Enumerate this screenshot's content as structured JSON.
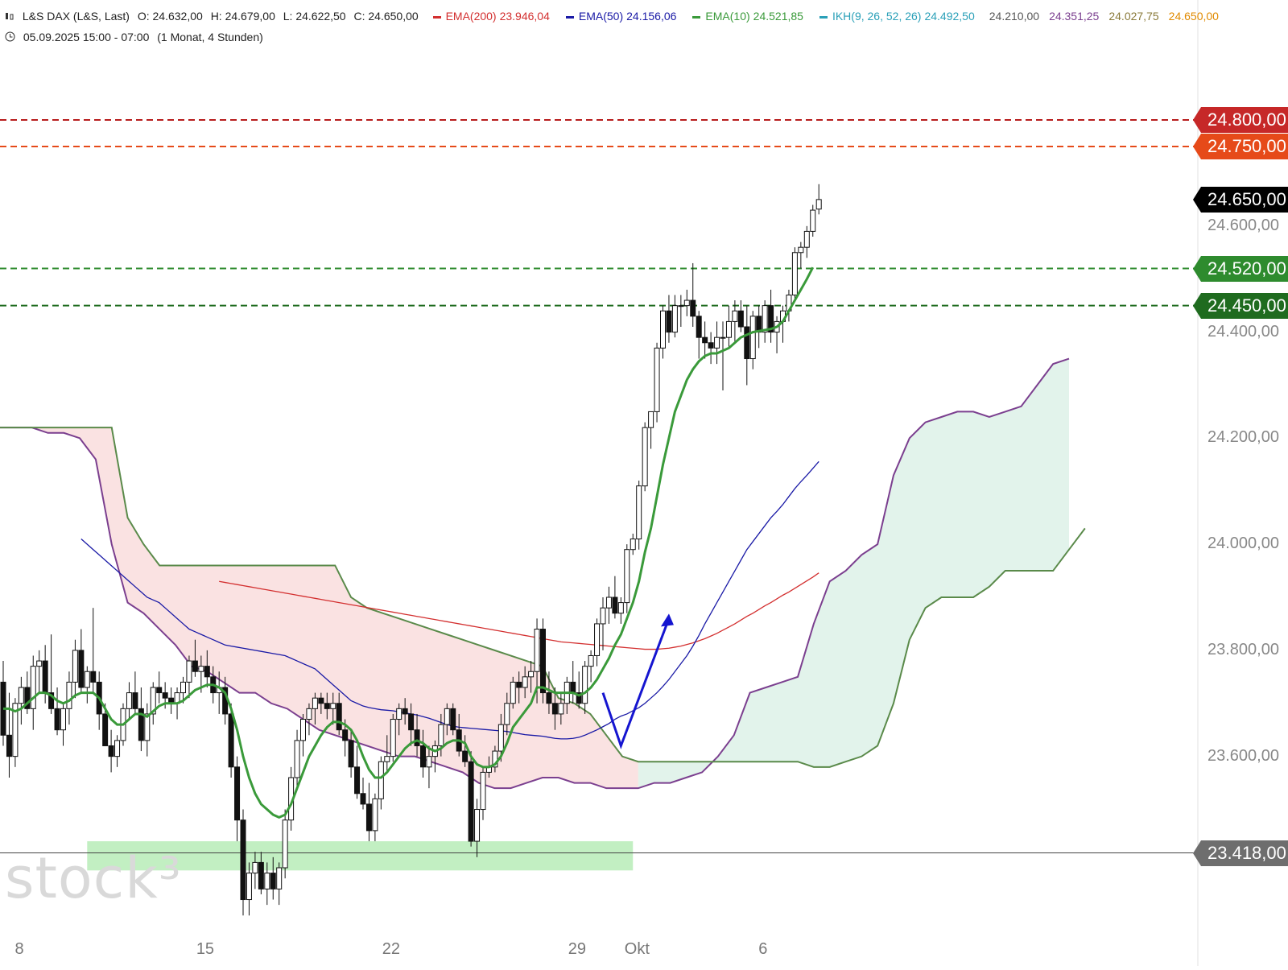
{
  "header": {
    "symbol": "L&S DAX (L&S, Last)",
    "ohlc": [
      "O: 24.632,00",
      "H: 24.679,00",
      "L: 24.622,50",
      "C: 24.650,00"
    ],
    "indicators": [
      {
        "label": "EMA(200)",
        "value": "23.946,04",
        "color": "#d32f2f"
      },
      {
        "label": "EMA(50)",
        "value": "24.156,06",
        "color": "#1a1aa6"
      },
      {
        "label": "EMA(10)",
        "value": "24.521,85",
        "color": "#3a9a3a"
      },
      {
        "label": "IKH(9, 26, 52, 26)",
        "value": "24.492,50",
        "color": "#2aa0b8"
      }
    ],
    "ikh_extra": [
      {
        "value": "24.210,00",
        "color": "#555555"
      },
      {
        "value": "24.351,25",
        "color": "#7b3f8f"
      },
      {
        "value": "24.027,75",
        "color": "#8a7a3a"
      },
      {
        "value": "24.650,00",
        "color": "#e08a00"
      }
    ],
    "period": "05.09.2025 15:00 - 07:00",
    "timeframe": "(1 Monat, 4 Stunden)"
  },
  "watermark": "stock³",
  "chart_data": {
    "type": "candlestick",
    "y_axis_labels": [
      "24.600,00",
      "24.400,00",
      "24.200,00",
      "24.000,00",
      "23.800,00",
      "23.600,00"
    ],
    "y_axis_values": [
      24600,
      24400,
      24200,
      24000,
      23800,
      23600
    ],
    "ylim": [
      23220,
      24920
    ],
    "x_axis_labels": [
      "8",
      "15",
      "22",
      "29",
      "Okt",
      "6"
    ],
    "x_axis_positions": [
      0,
      31,
      62,
      93,
      103,
      124
    ],
    "levels": [
      {
        "label": "24.800,00",
        "value": 24800,
        "color": "#b71c1c",
        "style": "dashed",
        "tag_color": "#c62828"
      },
      {
        "label": "24.750,00",
        "value": 24750,
        "color": "#e64a19",
        "style": "dashed",
        "tag_color": "#e64a19"
      },
      {
        "label": "24.520,00",
        "value": 24520,
        "color": "#2e8b2e",
        "style": "dashed",
        "tag_color": "#2e8b2e"
      },
      {
        "label": "24.450,00",
        "value": 24450,
        "color": "#1f6b1f",
        "style": "dashed",
        "tag_color": "#1f6b1f"
      },
      {
        "label": "23.418,00",
        "value": 23418,
        "color": "#444444",
        "style": "solid",
        "tag_color": "#6e6e6e"
      }
    ],
    "last_price": {
      "label": "24.650,00",
      "value": 24650
    },
    "support_zone": {
      "y_from": 23385,
      "y_to": 23440,
      "x_from": 14,
      "x_to": 105
    },
    "candles": [
      [
        23740,
        23780,
        23620,
        23640
      ],
      [
        23640,
        23720,
        23560,
        23600
      ],
      [
        23600,
        23710,
        23580,
        23700
      ],
      [
        23700,
        23750,
        23660,
        23730
      ],
      [
        23730,
        23760,
        23680,
        23690
      ],
      [
        23690,
        23790,
        23650,
        23770
      ],
      [
        23770,
        23800,
        23720,
        23780
      ],
      [
        23780,
        23810,
        23700,
        23720
      ],
      [
        23720,
        23830,
        23680,
        23690
      ],
      [
        23690,
        23730,
        23640,
        23650
      ],
      [
        23650,
        23700,
        23620,
        23690
      ],
      [
        23690,
        23760,
        23660,
        23740
      ],
      [
        23740,
        23820,
        23710,
        23800
      ],
      [
        23800,
        23840,
        23720,
        23730
      ],
      [
        23730,
        23770,
        23700,
        23760
      ],
      [
        23760,
        23880,
        23720,
        23740
      ],
      [
        23740,
        23760,
        23650,
        23680
      ],
      [
        23680,
        23700,
        23620,
        23620
      ],
      [
        23620,
        23650,
        23570,
        23600
      ],
      [
        23600,
        23640,
        23580,
        23630
      ],
      [
        23630,
        23700,
        23620,
        23690
      ],
      [
        23690,
        23740,
        23670,
        23720
      ],
      [
        23720,
        23760,
        23680,
        23690
      ],
      [
        23690,
        23730,
        23610,
        23630
      ],
      [
        23630,
        23700,
        23600,
        23680
      ],
      [
        23680,
        23740,
        23660,
        23730
      ],
      [
        23730,
        23760,
        23700,
        23720
      ],
      [
        23720,
        23740,
        23690,
        23710
      ],
      [
        23710,
        23730,
        23680,
        23700
      ],
      [
        23700,
        23730,
        23670,
        23720
      ],
      [
        23720,
        23750,
        23700,
        23740
      ],
      [
        23740,
        23790,
        23710,
        23780
      ],
      [
        23780,
        23820,
        23750,
        23760
      ],
      [
        23760,
        23790,
        23720,
        23770
      ],
      [
        23770,
        23800,
        23730,
        23750
      ],
      [
        23750,
        23770,
        23700,
        23720
      ],
      [
        23720,
        23760,
        23680,
        23730
      ],
      [
        23730,
        23750,
        23660,
        23680
      ],
      [
        23680,
        23700,
        23560,
        23580
      ],
      [
        23580,
        23600,
        23440,
        23480
      ],
      [
        23480,
        23500,
        23300,
        23330
      ],
      [
        23330,
        23400,
        23300,
        23380
      ],
      [
        23380,
        23420,
        23350,
        23400
      ],
      [
        23400,
        23420,
        23340,
        23350
      ],
      [
        23350,
        23400,
        23320,
        23380
      ],
      [
        23380,
        23410,
        23330,
        23350
      ],
      [
        23350,
        23400,
        23320,
        23390
      ],
      [
        23390,
        23500,
        23370,
        23480
      ],
      [
        23480,
        23580,
        23460,
        23560
      ],
      [
        23560,
        23650,
        23540,
        23630
      ],
      [
        23630,
        23680,
        23600,
        23670
      ],
      [
        23670,
        23700,
        23640,
        23690
      ],
      [
        23690,
        23720,
        23660,
        23710
      ],
      [
        23710,
        23720,
        23680,
        23700
      ],
      [
        23700,
        23720,
        23670,
        23690
      ],
      [
        23690,
        23720,
        23660,
        23700
      ],
      [
        23700,
        23720,
        23640,
        23650
      ],
      [
        23650,
        23670,
        23600,
        23630
      ],
      [
        23630,
        23650,
        23560,
        23580
      ],
      [
        23580,
        23620,
        23520,
        23530
      ],
      [
        23530,
        23560,
        23500,
        23510
      ],
      [
        23510,
        23550,
        23440,
        23460
      ],
      [
        23460,
        23530,
        23440,
        23520
      ],
      [
        23520,
        23600,
        23500,
        23590
      ],
      [
        23590,
        23640,
        23570,
        23600
      ],
      [
        23600,
        23680,
        23590,
        23670
      ],
      [
        23670,
        23700,
        23640,
        23690
      ],
      [
        23690,
        23710,
        23660,
        23680
      ],
      [
        23680,
        23700,
        23620,
        23650
      ],
      [
        23650,
        23680,
        23600,
        23620
      ],
      [
        23620,
        23650,
        23560,
        23580
      ],
      [
        23580,
        23620,
        23540,
        23600
      ],
      [
        23600,
        23630,
        23570,
        23620
      ],
      [
        23620,
        23680,
        23600,
        23660
      ],
      [
        23660,
        23700,
        23640,
        23690
      ],
      [
        23690,
        23700,
        23640,
        23650
      ],
      [
        23650,
        23680,
        23600,
        23610
      ],
      [
        23610,
        23640,
        23580,
        23590
      ],
      [
        23590,
        23610,
        23430,
        23440
      ],
      [
        23440,
        23520,
        23410,
        23500
      ],
      [
        23500,
        23580,
        23480,
        23570
      ],
      [
        23570,
        23600,
        23560,
        23580
      ],
      [
        23580,
        23620,
        23570,
        23610
      ],
      [
        23610,
        23680,
        23590,
        23660
      ],
      [
        23660,
        23720,
        23640,
        23700
      ],
      [
        23700,
        23750,
        23690,
        23740
      ],
      [
        23740,
        23760,
        23700,
        23730
      ],
      [
        23730,
        23770,
        23710,
        23750
      ],
      [
        23750,
        23780,
        23720,
        23760
      ],
      [
        23760,
        23860,
        23700,
        23840
      ],
      [
        23840,
        23860,
        23700,
        23720
      ],
      [
        23720,
        23760,
        23680,
        23700
      ],
      [
        23700,
        23730,
        23650,
        23680
      ],
      [
        23680,
        23720,
        23660,
        23700
      ],
      [
        23700,
        23750,
        23680,
        23740
      ],
      [
        23740,
        23780,
        23700,
        23720
      ],
      [
        23720,
        23760,
        23690,
        23700
      ],
      [
        23700,
        23780,
        23680,
        23770
      ],
      [
        23770,
        23800,
        23740,
        23790
      ],
      [
        23790,
        23860,
        23770,
        23850
      ],
      [
        23850,
        23900,
        23800,
        23880
      ],
      [
        23880,
        23920,
        23850,
        23900
      ],
      [
        23900,
        23940,
        23860,
        23870
      ],
      [
        23870,
        23900,
        23850,
        23890
      ],
      [
        23890,
        24000,
        23870,
        23990
      ],
      [
        23990,
        24020,
        23980,
        24010
      ],
      [
        24010,
        24120,
        23990,
        24110
      ],
      [
        24110,
        24230,
        24100,
        24220
      ],
      [
        24220,
        24250,
        24180,
        24250
      ],
      [
        24250,
        24380,
        24230,
        24370
      ],
      [
        24370,
        24450,
        24350,
        24440
      ],
      [
        24440,
        24470,
        24380,
        24400
      ],
      [
        24400,
        24470,
        24390,
        24450
      ],
      [
        24450,
        24470,
        24410,
        24450
      ],
      [
        24450,
        24480,
        24430,
        24460
      ],
      [
        24460,
        24530,
        24410,
        24430
      ],
      [
        24430,
        24440,
        24350,
        24390
      ],
      [
        24390,
        24420,
        24350,
        24380
      ],
      [
        24380,
        24400,
        24340,
        24370
      ],
      [
        24370,
        24420,
        24340,
        24390
      ],
      [
        24390,
        24420,
        24290,
        24390
      ],
      [
        24390,
        24450,
        24370,
        24420
      ],
      [
        24420,
        24460,
        24380,
        24440
      ],
      [
        24440,
        24460,
        24400,
        24410
      ],
      [
        24410,
        24450,
        24300,
        24350
      ],
      [
        24350,
        24440,
        24330,
        24430
      ],
      [
        24430,
        24450,
        24370,
        24400
      ],
      [
        24400,
        24460,
        24380,
        24450
      ],
      [
        24450,
        24480,
        24380,
        24400
      ],
      [
        24400,
        24430,
        24360,
        24420
      ],
      [
        24420,
        24450,
        24380,
        24440
      ],
      [
        24440,
        24480,
        24420,
        24470
      ],
      [
        24470,
        24560,
        24460,
        24550
      ],
      [
        24550,
        24570,
        24520,
        24560
      ],
      [
        24560,
        24600,
        24540,
        24590
      ],
      [
        24590,
        24640,
        24580,
        24630
      ],
      [
        24632,
        24679,
        24622,
        24650
      ]
    ],
    "ema10": [
      23690,
      23690,
      23685,
      23690,
      23700,
      23710,
      23720,
      23720,
      23715,
      23705,
      23700,
      23705,
      23715,
      23720,
      23720,
      23720,
      23710,
      23690,
      23670,
      23660,
      23660,
      23670,
      23680,
      23680,
      23675,
      23685,
      23695,
      23700,
      23700,
      23700,
      23705,
      23715,
      23725,
      23730,
      23735,
      23735,
      23730,
      23720,
      23690,
      23650,
      23600,
      23560,
      23530,
      23510,
      23500,
      23490,
      23485,
      23490,
      23510,
      23540,
      23570,
      23600,
      23620,
      23640,
      23655,
      23665,
      23665,
      23660,
      23650,
      23630,
      23600,
      23575,
      23560,
      23560,
      23570,
      23585,
      23600,
      23615,
      23625,
      23630,
      23625,
      23615,
      23610,
      23615,
      23625,
      23630,
      23630,
      23625,
      23600,
      23585,
      23580,
      23580,
      23585,
      23600,
      23625,
      23655,
      23670,
      23685,
      23700,
      23730,
      23730,
      23725,
      23720,
      23720,
      23720,
      23720,
      23715,
      23720,
      23730,
      23745,
      23765,
      23785,
      23810,
      23830,
      23860,
      23890,
      23930,
      23985,
      24030,
      24090,
      24150,
      24200,
      24250,
      24280,
      24310,
      24330,
      24345,
      24355,
      24360,
      24360,
      24365,
      24370,
      24380,
      24390,
      24395,
      24400,
      24402,
      24404,
      24406,
      24410,
      24420,
      24440,
      24460,
      24480,
      24500,
      24522
    ],
    "ema50": [
      24010,
      24000,
      23990,
      23980,
      23970,
      23960,
      23950,
      23940,
      23930,
      23920,
      23910,
      23900,
      23895,
      23890,
      23880,
      23870,
      23860,
      23850,
      23840,
      23835,
      23830,
      23825,
      23820,
      23815,
      23810,
      23808,
      23806,
      23804,
      23802,
      23800,
      23798,
      23796,
      23794,
      23792,
      23790,
      23785,
      23780,
      23775,
      23770,
      23765,
      23755,
      23745,
      23735,
      23725,
      23715,
      23705,
      23700,
      23695,
      23692,
      23690,
      23688,
      23687,
      23686,
      23684,
      23682,
      23680,
      23678,
      23675,
      23672,
      23668,
      23664,
      23660,
      23657,
      23655,
      23654,
      23653,
      23652,
      23651,
      23650,
      23649,
      23648,
      23647,
      23645,
      23643,
      23641,
      23640,
      23639,
      23638,
      23636,
      23634,
      23633,
      23633,
      23634,
      23636,
      23640,
      23645,
      23650,
      23656,
      23662,
      23670,
      23676,
      23680,
      23686,
      23692,
      23700,
      23710,
      23720,
      23732,
      23745,
      23760,
      23775,
      23790,
      23808,
      23828,
      23850,
      23870,
      23890,
      23910,
      23930,
      23950,
      23970,
      23990,
      24005,
      24020,
      24035,
      24050,
      24062,
      24075,
      24090,
      24105,
      24118,
      24130,
      24143,
      24156
    ],
    "ema200": [
      23930,
      23928,
      23926,
      23924,
      23922,
      23920,
      23918,
      23916,
      23914,
      23912,
      23910,
      23908,
      23906,
      23904,
      23902,
      23900,
      23898,
      23896,
      23894,
      23892,
      23890,
      23888,
      23886,
      23884,
      23882,
      23880,
      23878,
      23876,
      23874,
      23872,
      23870,
      23868,
      23866,
      23864,
      23862,
      23860,
      23858,
      23856,
      23854,
      23852,
      23850,
      23848,
      23846,
      23844,
      23842,
      23840,
      23838,
      23836,
      23834,
      23832,
      23830,
      23828,
      23826,
      23824,
      23822,
      23820,
      23818,
      23816,
      23815,
      23814,
      23813,
      23812,
      23811,
      23810,
      23809,
      23808,
      23807,
      23806,
      23805,
      23804,
      23803,
      23802,
      23802,
      23802,
      23803,
      23804,
      23806,
      23808,
      23811,
      23814,
      23818,
      23822,
      23827,
      23832,
      23838,
      23844,
      23850,
      23857,
      23864,
      23870,
      23877,
      23884,
      23890,
      23897,
      23904,
      23910,
      23917,
      23924,
      23931,
      23938,
      23946
    ],
    "ikh_span_a": [
      24220,
      24220,
      24220,
      24210,
      24210,
      24200,
      24160,
      24000,
      23890,
      23870,
      23840,
      23810,
      23770,
      23760,
      23740,
      23720,
      23720,
      23700,
      23690,
      23670,
      23650,
      23640,
      23630,
      23620,
      23610,
      23600,
      23600,
      23590,
      23580,
      23570,
      23550,
      23540,
      23540,
      23550,
      23560,
      23560,
      23550,
      23550,
      23540,
      23540,
      23540,
      23550,
      23550,
      23560,
      23570,
      23600,
      23640,
      23720,
      23730,
      23740,
      23750,
      23850,
      23930,
      23950,
      23980,
      24000,
      24130,
      24200,
      24230,
      24240,
      24250,
      24250,
      24240,
      24250,
      24260,
      24300,
      24340,
      24350
    ],
    "ikh_span_b": [
      24220,
      24220,
      24220,
      24220,
      24220,
      24220,
      24220,
      24220,
      24050,
      24000,
      23960,
      23960,
      23960,
      23960,
      23960,
      23960,
      23960,
      23960,
      23960,
      23960,
      23960,
      23960,
      23900,
      23880,
      23870,
      23860,
      23850,
      23840,
      23830,
      23820,
      23810,
      23800,
      23790,
      23780,
      23770,
      23710,
      23700,
      23680,
      23640,
      23600,
      23590,
      23590,
      23590,
      23590,
      23590,
      23590,
      23590,
      23590,
      23590,
      23590,
      23590,
      23580,
      23580,
      23590,
      23600,
      23620,
      23700,
      23820,
      23880,
      23900,
      23900,
      23900,
      23920,
      23950,
      23950,
      23950,
      23950,
      23990,
      24030
    ],
    "arrow": {
      "from_x": 100,
      "from_y": 23720,
      "mid_x": 103,
      "mid_y": 23620,
      "to_x": 111,
      "to_y": 23860,
      "color": "#1515d0"
    }
  }
}
